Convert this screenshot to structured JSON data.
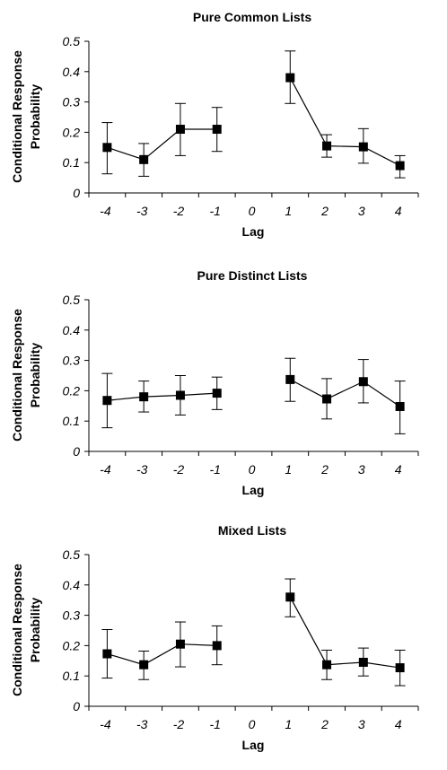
{
  "chart_data": [
    {
      "type": "line",
      "title": "Pure Common Lists",
      "xlabel": "Lag",
      "ylabel": [
        "Conditional Response",
        "Probability"
      ],
      "x": [
        -4,
        -3,
        -2,
        -1,
        0,
        1,
        2,
        3,
        4
      ],
      "x_tick_labels": [
        "-4",
        "-3",
        "-2",
        "-1",
        "0",
        "1",
        "2",
        "3",
        "4"
      ],
      "y_ticks": [
        "0",
        "0.1",
        "0.2",
        "0.3",
        "0.4",
        "0.5"
      ],
      "ylim": [
        0,
        0.5
      ],
      "series": [
        {
          "values": [
            0.15,
            0.11,
            0.21,
            0.21,
            null,
            0.38,
            0.155,
            0.152,
            0.09
          ],
          "error_low": [
            0.063,
            0.055,
            0.123,
            0.137,
            null,
            0.295,
            0.118,
            0.098,
            0.05
          ],
          "error_high": [
            0.232,
            0.163,
            0.295,
            0.282,
            null,
            0.468,
            0.192,
            0.212,
            0.123
          ]
        }
      ]
    },
    {
      "type": "line",
      "title": "Pure Distinct Lists",
      "xlabel": "Lag",
      "ylabel": [
        "Conditional Response",
        "Probability"
      ],
      "x": [
        -4,
        -3,
        -2,
        -1,
        0,
        1,
        2,
        3,
        4
      ],
      "x_tick_labels": [
        "-4",
        "-3",
        "-2",
        "-1",
        "0",
        "1",
        "2",
        "3",
        "4"
      ],
      "y_ticks": [
        "0",
        "0.1",
        "0.2",
        "0.3",
        "0.4",
        "0.5"
      ],
      "ylim": [
        0,
        0.5
      ],
      "series": [
        {
          "values": [
            0.168,
            0.18,
            0.185,
            0.192,
            null,
            0.237,
            0.173,
            0.23,
            0.148
          ],
          "error_low": [
            0.078,
            0.13,
            0.12,
            0.138,
            null,
            0.165,
            0.107,
            0.16,
            0.058
          ],
          "error_high": [
            0.257,
            0.232,
            0.25,
            0.245,
            null,
            0.307,
            0.24,
            0.303,
            0.232
          ]
        }
      ]
    },
    {
      "type": "line",
      "title": "Mixed Lists",
      "xlabel": "Lag",
      "ylabel": [
        "Conditional Response",
        "Probability"
      ],
      "x": [
        -4,
        -3,
        -2,
        -1,
        0,
        1,
        2,
        3,
        4
      ],
      "x_tick_labels": [
        "-4",
        "-3",
        "-2",
        "-1",
        "0",
        "1",
        "2",
        "3",
        "4"
      ],
      "y_ticks": [
        "0",
        "0.1",
        "0.2",
        "0.3",
        "0.4",
        "0.5"
      ],
      "ylim": [
        0,
        0.5
      ],
      "series": [
        {
          "values": [
            0.173,
            0.137,
            0.205,
            0.2,
            null,
            0.36,
            0.137,
            0.145,
            0.127
          ],
          "error_low": [
            0.093,
            0.088,
            0.13,
            0.137,
            null,
            0.295,
            0.088,
            0.1,
            0.068
          ],
          "error_high": [
            0.253,
            0.182,
            0.278,
            0.265,
            null,
            0.42,
            0.185,
            0.192,
            0.185
          ]
        }
      ]
    }
  ]
}
